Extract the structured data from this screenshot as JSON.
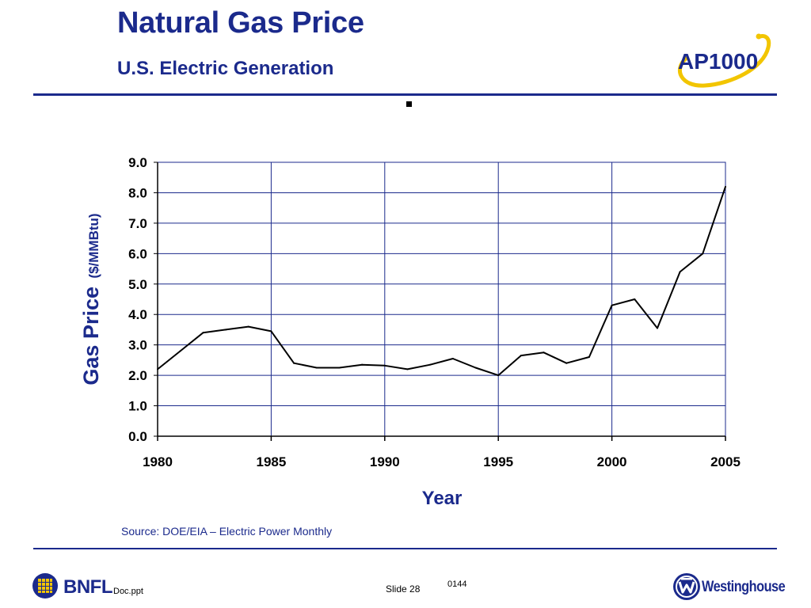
{
  "header": {
    "title": "Natural Gas Price",
    "subtitle": "U.S. Electric Generation",
    "logo_text": "AP1000"
  },
  "colors": {
    "brand_blue": "#1b2a8c",
    "logo_gold": "#f2c500",
    "grid": "#1b2a8c",
    "series": "#000000"
  },
  "icons": [
    "ap1000-logo",
    "bnfl-logo-icon",
    "westinghouse-logo-icon"
  ],
  "chart_data": {
    "type": "line",
    "xlabel": "Year",
    "ylabel_main": "Gas Price",
    "ylabel_unit": "($/MMBtu)",
    "xlim": [
      1980,
      2005
    ],
    "ylim": [
      0,
      9
    ],
    "x_ticks": [
      1980,
      1985,
      1990,
      1995,
      2000,
      2005
    ],
    "x_tick_labels": [
      "1980",
      "1985",
      "1990",
      "1995",
      "2000",
      "2005"
    ],
    "y_ticks": [
      0,
      1,
      2,
      3,
      4,
      5,
      6,
      7,
      8,
      9
    ],
    "y_tick_labels": [
      "0.0",
      "1.0",
      "2.0",
      "3.0",
      "4.0",
      "5.0",
      "6.0",
      "7.0",
      "8.0",
      "9.0"
    ],
    "grid": true,
    "series": [
      {
        "x": [
          1980,
          1981,
          1982,
          1983,
          1984,
          1985,
          1986,
          1987,
          1988,
          1989,
          1990,
          1991,
          1992,
          1993,
          1994,
          1995,
          1996,
          1997,
          1998,
          1999,
          2000,
          2001,
          2002,
          2003,
          2004,
          2005
        ],
        "values": [
          2.2,
          2.8,
          3.4,
          3.5,
          3.6,
          3.45,
          2.4,
          2.25,
          2.25,
          2.35,
          2.32,
          2.2,
          2.35,
          2.55,
          2.25,
          2.0,
          2.65,
          2.75,
          2.4,
          2.6,
          4.3,
          4.5,
          3.55,
          5.4,
          6.0,
          8.2
        ]
      }
    ]
  },
  "source_note": "Source: DOE/EIA – Electric Power Monthly",
  "footer": {
    "left_logo_text": "BNFL",
    "file_name": "Doc.ppt",
    "slide_label": "Slide 28",
    "code": "0144",
    "right_logo_text": "Westinghouse"
  }
}
